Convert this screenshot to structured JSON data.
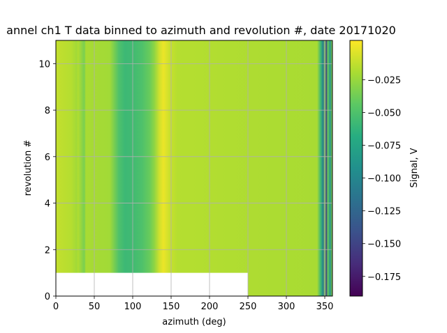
{
  "chart_data": {
    "type": "heatmap",
    "title": "annel ch1 T data binned to azimuth and revolution #, date 20171020",
    "xlabel": "azimuth (deg)",
    "ylabel": "revolution #",
    "xlim": [
      0,
      360
    ],
    "ylim": [
      0,
      11
    ],
    "xticks": [
      "0",
      "50",
      "100",
      "150",
      "200",
      "250",
      "300",
      "350"
    ],
    "yticks": [
      "0",
      "2",
      "4",
      "6",
      "8",
      "10"
    ],
    "grid": true,
    "colormap": "viridis",
    "colorbar": {
      "label": "Signal, V",
      "vmin": -0.19,
      "vmax": 0.005,
      "ticks": [
        "−0.025",
        "−0.050",
        "−0.075",
        "−0.100",
        "−0.125",
        "−0.150",
        "−0.175"
      ],
      "tick_values": [
        -0.025,
        -0.05,
        -0.075,
        -0.1,
        -0.125,
        -0.15,
        -0.175
      ]
    },
    "azimuth_profile": [
      {
        "az": 0,
        "v": -0.012
      },
      {
        "az": 20,
        "v": -0.016
      },
      {
        "az": 27,
        "v": -0.022
      },
      {
        "az": 29,
        "v": -0.018
      },
      {
        "az": 37,
        "v": -0.035
      },
      {
        "az": 39,
        "v": -0.02
      },
      {
        "az": 70,
        "v": -0.022
      },
      {
        "az": 82,
        "v": -0.05
      },
      {
        "az": 90,
        "v": -0.058
      },
      {
        "az": 100,
        "v": -0.056
      },
      {
        "az": 112,
        "v": -0.05
      },
      {
        "az": 122,
        "v": -0.04
      },
      {
        "az": 128,
        "v": -0.028
      },
      {
        "az": 135,
        "v": -0.008
      },
      {
        "az": 140,
        "v": 0.0
      },
      {
        "az": 148,
        "v": -0.01
      },
      {
        "az": 158,
        "v": -0.016
      },
      {
        "az": 340,
        "v": -0.02
      },
      {
        "az": 345,
        "v": -0.06
      },
      {
        "az": 348,
        "v": -0.11
      },
      {
        "az": 350,
        "v": -0.03
      },
      {
        "az": 352,
        "v": -0.15
      },
      {
        "az": 354,
        "v": -0.04
      },
      {
        "az": 357,
        "v": -0.09
      },
      {
        "az": 360,
        "v": -0.025
      }
    ],
    "missing_regions": [
      {
        "az_start": 0,
        "az_end": 250,
        "rev_start": 0,
        "rev_end": 1
      }
    ]
  }
}
